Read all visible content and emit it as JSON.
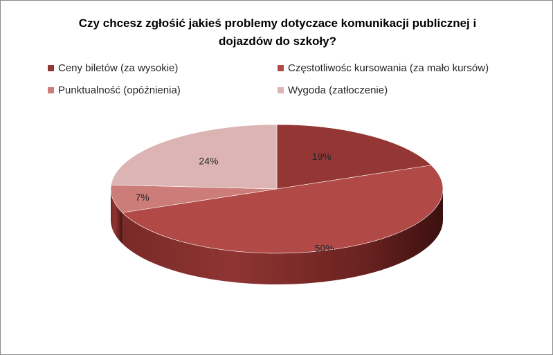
{
  "chart_data": {
    "type": "pie",
    "title": "Czy chcesz zgłośić jakieś problemy dotyczace komunikacji  publicznej i dojazdów do szkoły?",
    "title_lines": [
      "Czy chcesz zgłośić jakieś problemy dotyczace komunikacji  publicznej i",
      "dojazdów do szkoły?"
    ],
    "categories": [
      "Ceny biletów (za wysokie)",
      "Częstotliwośc kursowania (za mało kursów)",
      "Punktualność (opóźnienia)",
      "Wygoda (zatłoczenie)"
    ],
    "values": [
      19,
      50,
      7,
      24
    ],
    "data_labels": [
      "19%",
      "50%",
      "7%",
      "24%"
    ],
    "colors": [
      "#943634",
      "#b14a46",
      "#cc7c79",
      "#dbb4b3"
    ],
    "legend_placement": "top",
    "three_d": true
  }
}
